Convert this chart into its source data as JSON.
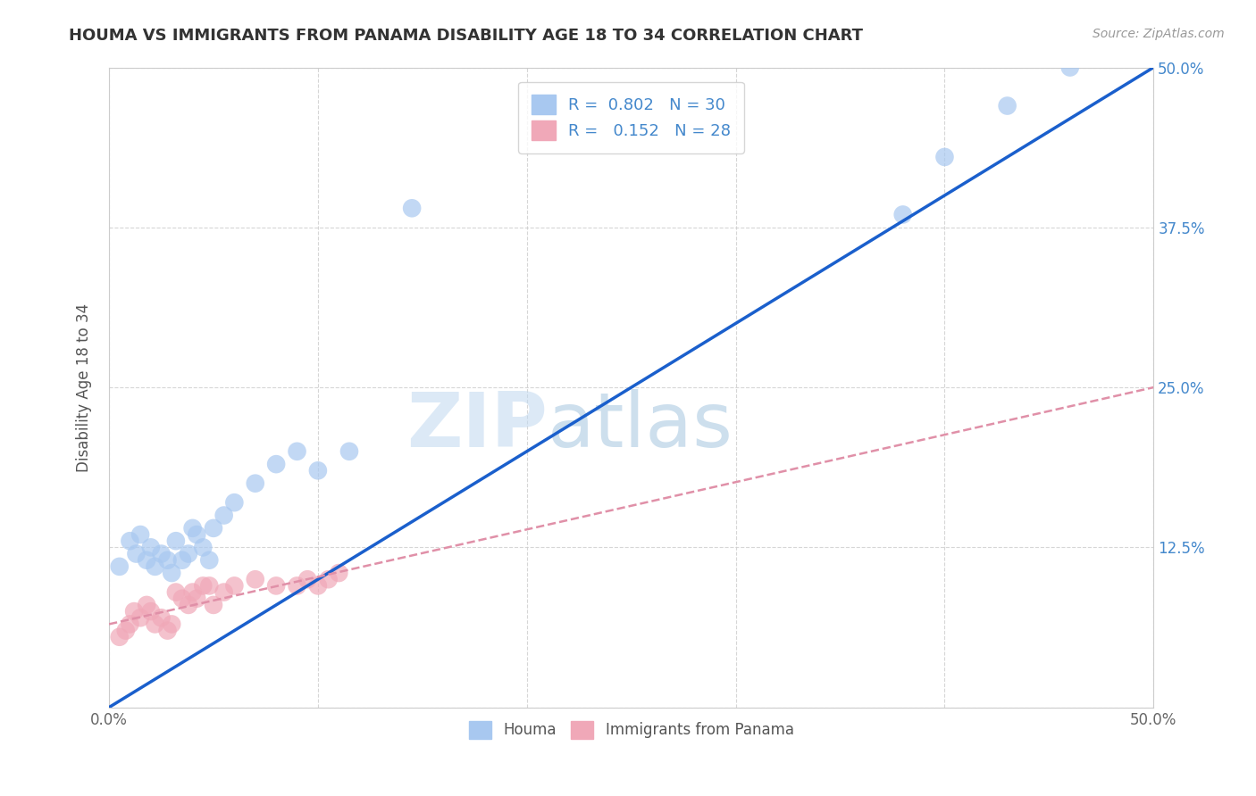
{
  "title": "HOUMA VS IMMIGRANTS FROM PANAMA DISABILITY AGE 18 TO 34 CORRELATION CHART",
  "source": "Source: ZipAtlas.com",
  "ylabel": "Disability Age 18 to 34",
  "xlim": [
    0.0,
    0.5
  ],
  "ylim": [
    0.0,
    0.5
  ],
  "xticks": [
    0.0,
    0.1,
    0.2,
    0.3,
    0.4,
    0.5
  ],
  "yticks": [
    0.0,
    0.125,
    0.25,
    0.375,
    0.5
  ],
  "xticklabels": [
    "0.0%",
    "",
    "",
    "",
    "",
    "50.0%"
  ],
  "yticklabels_right": [
    "",
    "12.5%",
    "25.0%",
    "37.5%",
    "50.0%"
  ],
  "houma_R": 0.802,
  "houma_N": 30,
  "panama_R": 0.152,
  "panama_N": 28,
  "houma_color": "#a8c8f0",
  "panama_color": "#f0a8b8",
  "houma_line_color": "#1a5fcc",
  "panama_line_color": "#e090a8",
  "background_color": "#ffffff",
  "grid_color": "#cccccc",
  "watermark_zip": "ZIP",
  "watermark_atlas": "atlas",
  "houma_scatter_x": [
    0.005,
    0.01,
    0.013,
    0.015,
    0.018,
    0.02,
    0.022,
    0.025,
    0.028,
    0.03,
    0.032,
    0.035,
    0.038,
    0.04,
    0.042,
    0.045,
    0.048,
    0.05,
    0.055,
    0.06,
    0.07,
    0.08,
    0.09,
    0.1,
    0.115,
    0.145,
    0.38,
    0.4,
    0.43,
    0.46
  ],
  "houma_scatter_y": [
    0.11,
    0.13,
    0.12,
    0.135,
    0.115,
    0.125,
    0.11,
    0.12,
    0.115,
    0.105,
    0.13,
    0.115,
    0.12,
    0.14,
    0.135,
    0.125,
    0.115,
    0.14,
    0.15,
    0.16,
    0.175,
    0.19,
    0.2,
    0.185,
    0.2,
    0.39,
    0.385,
    0.43,
    0.47,
    0.5
  ],
  "panama_scatter_x": [
    0.005,
    0.008,
    0.01,
    0.012,
    0.015,
    0.018,
    0.02,
    0.022,
    0.025,
    0.028,
    0.03,
    0.032,
    0.035,
    0.038,
    0.04,
    0.042,
    0.045,
    0.048,
    0.05,
    0.055,
    0.06,
    0.07,
    0.08,
    0.09,
    0.095,
    0.1,
    0.105,
    0.11
  ],
  "panama_scatter_y": [
    0.055,
    0.06,
    0.065,
    0.075,
    0.07,
    0.08,
    0.075,
    0.065,
    0.07,
    0.06,
    0.065,
    0.09,
    0.085,
    0.08,
    0.09,
    0.085,
    0.095,
    0.095,
    0.08,
    0.09,
    0.095,
    0.1,
    0.095,
    0.095,
    0.1,
    0.095,
    0.1,
    0.105
  ],
  "houma_line_x": [
    0.0,
    0.5
  ],
  "houma_line_y": [
    0.0,
    0.5
  ],
  "panama_line_x": [
    0.0,
    0.5
  ],
  "panama_line_y": [
    0.065,
    0.25
  ]
}
